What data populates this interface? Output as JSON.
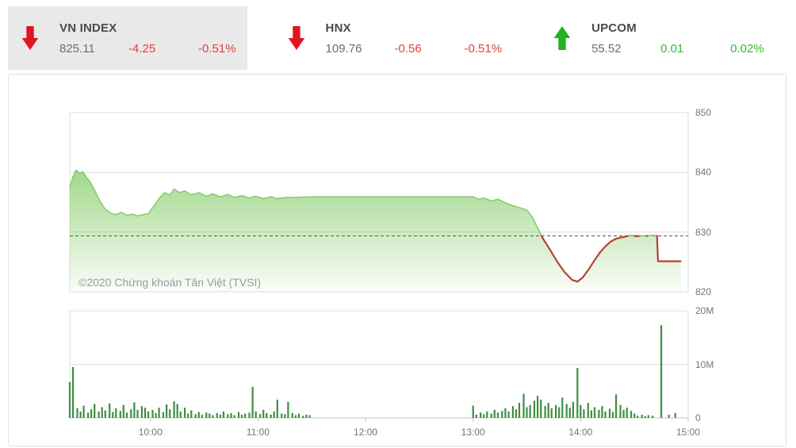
{
  "header": {
    "indices": [
      {
        "name": "VN INDEX",
        "value": "825.11",
        "change": "-4.25",
        "change_pct": "-0.51%",
        "direction": "down",
        "active": true
      },
      {
        "name": "HNX",
        "value": "109.76",
        "change": "-0.56",
        "change_pct": "-0.51%",
        "direction": "down",
        "active": false
      },
      {
        "name": "UPCOM",
        "value": "55.52",
        "change": "0.01",
        "change_pct": "0.02%",
        "direction": "up",
        "active": false
      }
    ]
  },
  "watermark": "©2020 Chứng khoán Tân Việt (TVSI)",
  "colors": {
    "up_arrow": "#1eb320",
    "down_arrow": "#e0161f",
    "up_text": "#2dbf2d",
    "down_text": "#e2413c",
    "title_text": "#4a4a4a",
    "value_text": "#6d6d6d",
    "panel_active_bg": "#e9e9e9",
    "border": "#e0e0e0",
    "grid": "#dcdcdc",
    "axis": "#c2c2c2",
    "tick_label": "#757575",
    "ref_line": "#56564e",
    "price_line_up": "#82cb6a",
    "price_line_down": "#b94136",
    "area_green": "#68c042",
    "volume_bar": "#3e8e41",
    "watermark_text": "#9b9b9b"
  },
  "chart_data": {
    "type": "area",
    "title": "VN INDEX intraday",
    "x_axis": {
      "range": [
        9.25,
        15
      ],
      "ticks": [
        10,
        11,
        12,
        13,
        14,
        15
      ],
      "labels": [
        "10:00",
        "11:00",
        "12:00",
        "13:00",
        "14:00",
        "15:00"
      ]
    },
    "y_axis_price": {
      "range": [
        820,
        850
      ],
      "ticks": [
        850,
        840,
        830,
        820
      ],
      "labels": [
        "850",
        "840",
        "830",
        "820"
      ]
    },
    "y_axis_volume": {
      "range": [
        0,
        20
      ],
      "ticks": [
        20,
        10,
        0
      ],
      "labels": [
        "20M",
        "10M",
        "0"
      ]
    },
    "price": {
      "reference": 829.36,
      "close": 825.11,
      "points": [
        [
          9.25,
          837.5
        ],
        [
          9.28,
          839.3
        ],
        [
          9.31,
          840.4
        ],
        [
          9.34,
          839.8
        ],
        [
          9.37,
          840.1
        ],
        [
          9.4,
          839.3
        ],
        [
          9.44,
          838.4
        ],
        [
          9.48,
          837.0
        ],
        [
          9.53,
          835.2
        ],
        [
          9.58,
          833.8
        ],
        [
          9.63,
          833.2
        ],
        [
          9.68,
          832.9
        ],
        [
          9.73,
          833.3
        ],
        [
          9.78,
          832.8
        ],
        [
          9.83,
          833.0
        ],
        [
          9.88,
          832.7
        ],
        [
          9.93,
          832.9
        ],
        [
          9.98,
          833.1
        ],
        [
          10.03,
          834.3
        ],
        [
          10.08,
          835.6
        ],
        [
          10.13,
          836.6
        ],
        [
          10.18,
          836.2
        ],
        [
          10.22,
          837.2
        ],
        [
          10.27,
          836.6
        ],
        [
          10.32,
          836.9
        ],
        [
          10.38,
          836.2
        ],
        [
          10.45,
          836.6
        ],
        [
          10.52,
          836.0
        ],
        [
          10.58,
          836.4
        ],
        [
          10.65,
          835.9
        ],
        [
          10.72,
          836.3
        ],
        [
          10.78,
          835.8
        ],
        [
          10.85,
          836.1
        ],
        [
          10.92,
          835.7
        ],
        [
          10.98,
          836.0
        ],
        [
          11.05,
          835.6
        ],
        [
          11.12,
          835.9
        ],
        [
          11.18,
          835.6
        ],
        [
          11.25,
          835.8
        ],
        [
          11.35,
          835.8
        ],
        [
          11.5,
          835.9
        ],
        [
          13.0,
          835.9
        ],
        [
          13.05,
          835.5
        ],
        [
          13.1,
          835.7
        ],
        [
          13.17,
          835.2
        ],
        [
          13.23,
          835.5
        ],
        [
          13.3,
          834.9
        ],
        [
          13.37,
          834.4
        ],
        [
          13.43,
          834.1
        ],
        [
          13.5,
          833.7
        ],
        [
          13.55,
          832.5
        ],
        [
          13.6,
          830.7
        ],
        [
          13.65,
          828.9
        ],
        [
          13.72,
          826.9
        ],
        [
          13.78,
          825.1
        ],
        [
          13.85,
          823.3
        ],
        [
          13.92,
          822.0
        ],
        [
          13.97,
          821.7
        ],
        [
          14.02,
          822.4
        ],
        [
          14.08,
          823.9
        ],
        [
          14.13,
          825.3
        ],
        [
          14.18,
          826.6
        ],
        [
          14.23,
          827.6
        ],
        [
          14.28,
          828.4
        ],
        [
          14.33,
          828.9
        ],
        [
          14.38,
          829.1
        ],
        [
          14.43,
          829.3
        ],
        [
          14.47,
          829.45
        ],
        [
          14.52,
          829.3
        ],
        [
          14.57,
          829.4
        ],
        [
          14.62,
          829.35
        ],
        [
          14.67,
          829.45
        ],
        [
          14.71,
          829.4
        ],
        [
          14.72,
          825.11
        ],
        [
          14.93,
          825.11
        ]
      ]
    },
    "volume": {
      "unit": "millions",
      "points": [
        [
          9.25,
          6.7
        ],
        [
          9.28,
          9.5
        ],
        [
          9.32,
          1.8
        ],
        [
          9.35,
          1.2
        ],
        [
          9.38,
          2.3
        ],
        [
          9.42,
          1.0
        ],
        [
          9.45,
          1.6
        ],
        [
          9.48,
          2.6
        ],
        [
          9.52,
          1.2
        ],
        [
          9.55,
          2.0
        ],
        [
          9.58,
          1.4
        ],
        [
          9.62,
          2.7
        ],
        [
          9.65,
          1.1
        ],
        [
          9.68,
          1.8
        ],
        [
          9.72,
          1.3
        ],
        [
          9.75,
          2.4
        ],
        [
          9.78,
          1.0
        ],
        [
          9.82,
          1.6
        ],
        [
          9.85,
          2.9
        ],
        [
          9.88,
          1.5
        ],
        [
          9.92,
          2.2
        ],
        [
          9.95,
          1.9
        ],
        [
          9.98,
          1.2
        ],
        [
          10.02,
          1.5
        ],
        [
          10.05,
          0.9
        ],
        [
          10.08,
          1.9
        ],
        [
          10.12,
          1.1
        ],
        [
          10.15,
          2.5
        ],
        [
          10.18,
          1.6
        ],
        [
          10.22,
          3.1
        ],
        [
          10.25,
          2.6
        ],
        [
          10.28,
          1.2
        ],
        [
          10.32,
          1.9
        ],
        [
          10.35,
          0.8
        ],
        [
          10.38,
          1.4
        ],
        [
          10.42,
          0.7
        ],
        [
          10.45,
          1.1
        ],
        [
          10.48,
          0.6
        ],
        [
          10.52,
          1.0
        ],
        [
          10.55,
          0.8
        ],
        [
          10.58,
          0.5
        ],
        [
          10.62,
          0.9
        ],
        [
          10.65,
          0.6
        ],
        [
          10.68,
          1.2
        ],
        [
          10.72,
          0.7
        ],
        [
          10.75,
          0.9
        ],
        [
          10.78,
          0.5
        ],
        [
          10.82,
          1.1
        ],
        [
          10.85,
          0.6
        ],
        [
          10.88,
          0.8
        ],
        [
          10.92,
          1.0
        ],
        [
          10.95,
          5.8
        ],
        [
          10.98,
          1.2
        ],
        [
          11.02,
          0.7
        ],
        [
          11.05,
          1.5
        ],
        [
          11.08,
          0.9
        ],
        [
          11.12,
          0.6
        ],
        [
          11.15,
          1.2
        ],
        [
          11.18,
          3.4
        ],
        [
          11.22,
          0.8
        ],
        [
          11.25,
          0.7
        ],
        [
          11.28,
          3.0
        ],
        [
          11.32,
          0.9
        ],
        [
          11.35,
          0.5
        ],
        [
          11.38,
          0.8
        ],
        [
          11.42,
          0.4
        ],
        [
          11.45,
          0.6
        ],
        [
          11.48,
          0.5
        ],
        [
          13.0,
          2.3
        ],
        [
          13.03,
          0.6
        ],
        [
          13.07,
          1.0
        ],
        [
          13.1,
          0.7
        ],
        [
          13.13,
          1.2
        ],
        [
          13.17,
          0.8
        ],
        [
          13.2,
          1.5
        ],
        [
          13.23,
          1.0
        ],
        [
          13.27,
          1.3
        ],
        [
          13.3,
          1.8
        ],
        [
          13.33,
          1.2
        ],
        [
          13.37,
          2.2
        ],
        [
          13.4,
          1.6
        ],
        [
          13.43,
          2.8
        ],
        [
          13.47,
          4.5
        ],
        [
          13.5,
          2.0
        ],
        [
          13.53,
          2.4
        ],
        [
          13.57,
          3.2
        ],
        [
          13.6,
          4.1
        ],
        [
          13.63,
          3.4
        ],
        [
          13.67,
          2.2
        ],
        [
          13.7,
          2.8
        ],
        [
          13.73,
          1.8
        ],
        [
          13.77,
          2.4
        ],
        [
          13.8,
          2.0
        ],
        [
          13.83,
          3.8
        ],
        [
          13.87,
          2.6
        ],
        [
          13.9,
          1.9
        ],
        [
          13.93,
          3.0
        ],
        [
          13.97,
          9.3
        ],
        [
          14.0,
          2.4
        ],
        [
          14.03,
          1.6
        ],
        [
          14.07,
          2.8
        ],
        [
          14.1,
          1.4
        ],
        [
          14.13,
          2.0
        ],
        [
          14.17,
          1.5
        ],
        [
          14.2,
          2.2
        ],
        [
          14.23,
          1.2
        ],
        [
          14.27,
          1.7
        ],
        [
          14.3,
          1.1
        ],
        [
          14.33,
          4.4
        ],
        [
          14.37,
          2.4
        ],
        [
          14.4,
          1.5
        ],
        [
          14.43,
          1.9
        ],
        [
          14.47,
          1.3
        ],
        [
          14.5,
          0.8
        ],
        [
          14.53,
          0.4
        ],
        [
          14.57,
          0.6
        ],
        [
          14.6,
          0.3
        ],
        [
          14.63,
          0.5
        ],
        [
          14.67,
          0.4
        ],
        [
          14.75,
          17.3
        ],
        [
          14.82,
          0.6
        ],
        [
          14.88,
          0.9
        ]
      ]
    }
  }
}
